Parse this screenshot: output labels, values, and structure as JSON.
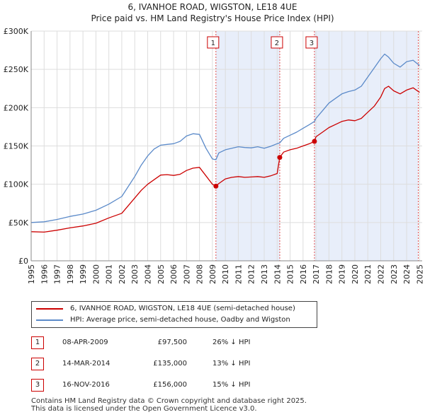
{
  "title": {
    "line1": "6, IVANHOE ROAD, WIGSTON, LE18 4UE",
    "line2": "Price paid vs. HM Land Registry's House Price Index (HPI)"
  },
  "colors": {
    "property": "#cc0000",
    "hpi": "#5b8ac9",
    "shade": "#e8eefa",
    "grid": "#dddddd"
  },
  "chart_data": {
    "type": "line",
    "title": "6, IVANHOE ROAD, WIGSTON, LE18 4UE — Price paid vs. HM Land Registry's House Price Index (HPI)",
    "xlabel": "",
    "ylabel": "",
    "xlim": [
      1995,
      2025.2
    ],
    "ylim": [
      0,
      300000
    ],
    "x_ticks": [
      1995,
      1996,
      1997,
      1998,
      1999,
      2000,
      2001,
      2002,
      2003,
      2004,
      2005,
      2006,
      2007,
      2008,
      2009,
      2010,
      2011,
      2012,
      2013,
      2014,
      2015,
      2016,
      2017,
      2018,
      2019,
      2020,
      2021,
      2022,
      2023,
      2024,
      2025
    ],
    "y_ticks": [
      {
        "value": 0,
        "label": "£0"
      },
      {
        "value": 50000,
        "label": "£50K"
      },
      {
        "value": 100000,
        "label": "£100K"
      },
      {
        "value": 150000,
        "label": "£150K"
      },
      {
        "value": 200000,
        "label": "£200K"
      },
      {
        "value": 250000,
        "label": "£250K"
      },
      {
        "value": 300000,
        "label": "£300K"
      }
    ],
    "grid": true,
    "shaded_ranges": [
      [
        2009.27,
        2014.2
      ],
      [
        2016.88,
        2024.9
      ]
    ],
    "series": [
      {
        "name": "6, IVANHOE ROAD, WIGSTON, LE18 4UE (semi-detached house)",
        "color": "#cc0000",
        "x": [
          1995,
          1996,
          1997,
          1998,
          1999,
          2000,
          2001,
          2002,
          2003,
          2003.5,
          2004,
          2004.5,
          2005,
          2005.5,
          2006,
          2006.5,
          2007,
          2007.5,
          2008,
          2008.5,
          2009,
          2009.27,
          2009.5,
          2010,
          2010.5,
          2011,
          2011.5,
          2012,
          2012.5,
          2013,
          2013.5,
          2014,
          2014.2,
          2014.5,
          2015,
          2015.5,
          2016,
          2016.5,
          2016.88,
          2017,
          2017.5,
          2018,
          2018.5,
          2019,
          2019.5,
          2020,
          2020.5,
          2021,
          2021.5,
          2022,
          2022.3,
          2022.6,
          2023,
          2023.5,
          2024,
          2024.5,
          2025
        ],
        "values": [
          38000,
          37500,
          40000,
          43000,
          45500,
          49000,
          56000,
          62000,
          82000,
          92000,
          100000,
          106000,
          112000,
          112500,
          111500,
          113000,
          118000,
          121000,
          122000,
          111000,
          100000,
          97500,
          101000,
          107000,
          109000,
          110000,
          109000,
          109500,
          110000,
          109000,
          111000,
          114000,
          135000,
          142000,
          145000,
          147000,
          150000,
          153000,
          156000,
          162000,
          168000,
          174000,
          178000,
          182000,
          184000,
          183000,
          186000,
          194000,
          202000,
          214000,
          225000,
          228000,
          222000,
          218000,
          223000,
          226000,
          220000
        ]
      },
      {
        "name": "HPI: Average price, semi-detached house, Oadby and Wigston",
        "color": "#5b8ac9",
        "x": [
          1995,
          1996,
          1997,
          1998,
          1999,
          2000,
          2001,
          2002,
          2003,
          2003.5,
          2004,
          2004.5,
          2005,
          2005.5,
          2006,
          2006.5,
          2007,
          2007.5,
          2008,
          2008.5,
          2009,
          2009.27,
          2009.5,
          2010,
          2010.5,
          2011,
          2011.5,
          2012,
          2012.5,
          2013,
          2013.5,
          2014,
          2014.2,
          2014.5,
          2015,
          2015.5,
          2016,
          2016.5,
          2016.88,
          2017,
          2017.5,
          2018,
          2018.5,
          2019,
          2019.5,
          2020,
          2020.5,
          2021,
          2021.5,
          2022,
          2022.3,
          2022.6,
          2023,
          2023.5,
          2024,
          2024.5,
          2025
        ],
        "values": [
          50000,
          51000,
          54000,
          58000,
          61000,
          66000,
          74000,
          84000,
          110000,
          125000,
          137000,
          146000,
          151000,
          152000,
          153000,
          156000,
          163000,
          166000,
          165000,
          147000,
          133000,
          132000,
          141000,
          145000,
          147000,
          149000,
          148000,
          147500,
          149000,
          147000,
          149500,
          153000,
          154000,
          160000,
          164000,
          168000,
          173000,
          178000,
          182000,
          186000,
          196000,
          206000,
          212000,
          218000,
          221000,
          223000,
          228000,
          240000,
          252000,
          264000,
          270000,
          266000,
          258000,
          253000,
          260000,
          262000,
          255000
        ]
      }
    ],
    "annotations": [
      {
        "label": "1",
        "x": 2009.27,
        "price": 97500
      },
      {
        "label": "2",
        "x": 2014.2,
        "price": 135000
      },
      {
        "label": "3",
        "x": 2016.88,
        "price": 156000
      }
    ]
  },
  "legend": {
    "property_label": "6, IVANHOE ROAD, WIGSTON, LE18 4UE (semi-detached house)",
    "hpi_label": "HPI: Average price, semi-detached house, Oadby and Wigston"
  },
  "sales": [
    {
      "num": "1",
      "date": "08-APR-2009",
      "price": "£97,500",
      "hpi": "26% ↓ HPI"
    },
    {
      "num": "2",
      "date": "14-MAR-2014",
      "price": "£135,000",
      "hpi": "13% ↓ HPI"
    },
    {
      "num": "3",
      "date": "16-NOV-2016",
      "price": "£156,000",
      "hpi": "15% ↓ HPI"
    }
  ],
  "footer": {
    "line1": "Contains HM Land Registry data © Crown copyright and database right 2025.",
    "line2": "This data is licensed under the Open Government Licence v3.0."
  }
}
